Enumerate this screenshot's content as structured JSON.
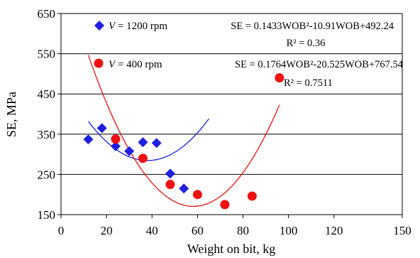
{
  "chart_data": {
    "type": "scatter",
    "xlabel": "Weight on bit, kg",
    "ylabel": "SE, MPa",
    "xlim": [
      0,
      150
    ],
    "ylim": [
      150,
      650
    ],
    "x_ticks": [
      "0",
      "20",
      "40",
      "60",
      "80",
      "100",
      "120",
      "150"
    ],
    "x_tick_values": [
      0,
      20,
      40,
      60,
      80,
      100,
      120,
      150
    ],
    "y_ticks": [
      "150",
      "250",
      "350",
      "450",
      "550",
      "650"
    ],
    "y_tick_values": [
      150,
      250,
      350,
      450,
      550,
      650
    ],
    "grid": "horizontal",
    "legend_placement": "top-left",
    "series": [
      {
        "name": "V = 1200 rpm",
        "name_italic": "V",
        "name_rest": " = 1200 rpm",
        "marker": "diamond",
        "color": "#1f1fe0",
        "trend_color": "#1f1fe0",
        "points": [
          [
            12,
            337
          ],
          [
            18,
            365
          ],
          [
            24,
            320
          ],
          [
            30,
            308
          ],
          [
            36,
            330
          ],
          [
            42,
            328
          ],
          [
            48,
            252
          ],
          [
            54,
            215
          ]
        ],
        "trendline": {
          "coef": [
            492.24,
            -10.91,
            0.1433
          ],
          "x_range": [
            12,
            65
          ]
        },
        "equation": "SE = 0.1433WOB²-10.91WOB+492.24",
        "r2": "R² = 0.36"
      },
      {
        "name": "V = 400 rpm",
        "name_italic": "V",
        "name_rest": " = 400 rpm",
        "marker": "circle",
        "color": "#ee1111",
        "trend_color": "#ee1111",
        "points": [
          [
            24,
            338
          ],
          [
            36,
            290
          ],
          [
            48,
            225
          ],
          [
            60,
            200
          ],
          [
            72,
            175
          ],
          [
            84,
            196
          ],
          [
            96,
            490
          ]
        ],
        "trendline": {
          "coef": [
            767.54,
            -20.525,
            0.1764
          ],
          "x_range": [
            12,
            96
          ]
        },
        "equation": "SE = 0.1764WOB²-20.525WOB+767.54",
        "r2": "R² = 0.7511"
      }
    ]
  }
}
